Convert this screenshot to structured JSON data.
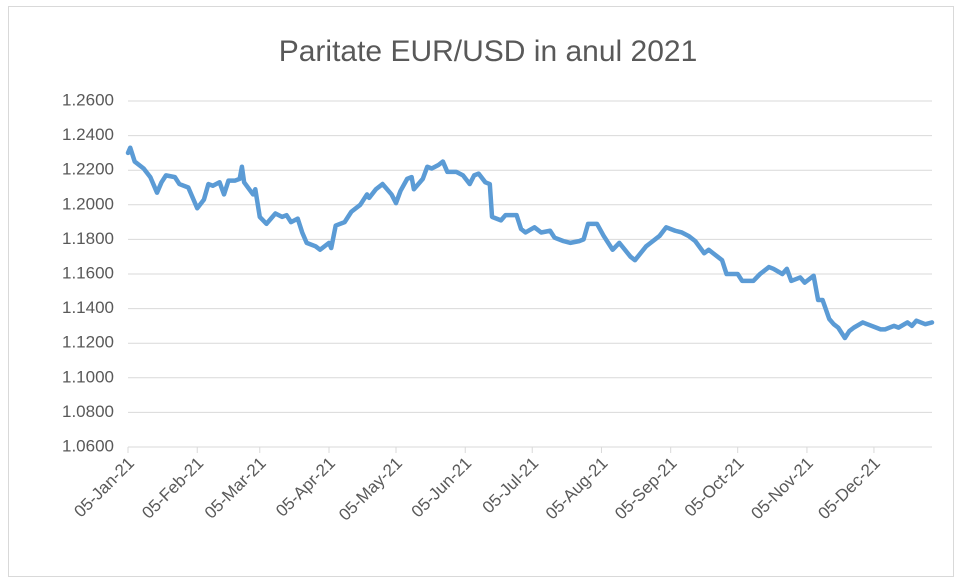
{
  "chart_data": {
    "type": "line",
    "title": "Paritate EUR/USD in anul 2021",
    "color": "#5b9bd5",
    "grid": true,
    "x": [
      "2021-01-05",
      "2021-01-06",
      "2021-01-08",
      "2021-01-12",
      "2021-01-15",
      "2021-01-18",
      "2021-01-20",
      "2021-01-22",
      "2021-01-26",
      "2021-01-28",
      "2021-02-01",
      "2021-02-03",
      "2021-02-05",
      "2021-02-08",
      "2021-02-10",
      "2021-02-12",
      "2021-02-15",
      "2021-02-17",
      "2021-02-19",
      "2021-02-22",
      "2021-02-24",
      "2021-02-25",
      "2021-02-26",
      "2021-03-02",
      "2021-03-03",
      "2021-03-05",
      "2021-03-08",
      "2021-03-10",
      "2021-03-12",
      "2021-03-15",
      "2021-03-17",
      "2021-03-19",
      "2021-03-22",
      "2021-03-24",
      "2021-03-26",
      "2021-03-30",
      "2021-04-01",
      "2021-04-05",
      "2021-04-06",
      "2021-04-08",
      "2021-04-12",
      "2021-04-15",
      "2021-04-19",
      "2021-04-22",
      "2021-04-23",
      "2021-04-26",
      "2021-04-29",
      "2021-05-03",
      "2021-05-05",
      "2021-05-07",
      "2021-05-10",
      "2021-05-12",
      "2021-05-13",
      "2021-05-17",
      "2021-05-19",
      "2021-05-21",
      "2021-05-24",
      "2021-05-26",
      "2021-05-28",
      "2021-06-01",
      "2021-06-04",
      "2021-06-07",
      "2021-06-09",
      "2021-06-11",
      "2021-06-14",
      "2021-06-16",
      "2021-06-17",
      "2021-06-21",
      "2021-06-23",
      "2021-06-28",
      "2021-06-30",
      "2021-07-02",
      "2021-07-06",
      "2021-07-09",
      "2021-07-13",
      "2021-07-15",
      "2021-07-19",
      "2021-07-22",
      "2021-07-26",
      "2021-07-28",
      "2021-07-30",
      "2021-08-03",
      "2021-08-06",
      "2021-08-10",
      "2021-08-13",
      "2021-08-18",
      "2021-08-20",
      "2021-08-25",
      "2021-08-27",
      "2021-08-31",
      "2021-09-03",
      "2021-09-07",
      "2021-09-10",
      "2021-09-13",
      "2021-09-16",
      "2021-09-20",
      "2021-09-22",
      "2021-09-24",
      "2021-09-28",
      "2021-09-30",
      "2021-10-05",
      "2021-10-07",
      "2021-10-12",
      "2021-10-15",
      "2021-10-19",
      "2021-10-21",
      "2021-10-25",
      "2021-10-27",
      "2021-10-29",
      "2021-11-02",
      "2021-11-04",
      "2021-11-08",
      "2021-11-10",
      "2021-11-12",
      "2021-11-15",
      "2021-11-17",
      "2021-11-19",
      "2021-11-22",
      "2021-11-24",
      "2021-11-26",
      "2021-11-30",
      "2021-12-02",
      "2021-12-06",
      "2021-12-08",
      "2021-12-10",
      "2021-12-14",
      "2021-12-16",
      "2021-12-20",
      "2021-12-22",
      "2021-12-24",
      "2021-12-28",
      "2021-12-31"
    ],
    "values": [
      1.23,
      1.233,
      1.225,
      1.221,
      1.216,
      1.207,
      1.213,
      1.217,
      1.216,
      1.212,
      1.21,
      1.204,
      1.198,
      1.203,
      1.212,
      1.211,
      1.213,
      1.206,
      1.214,
      1.214,
      1.215,
      1.222,
      1.213,
      1.206,
      1.209,
      1.193,
      1.189,
      1.192,
      1.195,
      1.193,
      1.194,
      1.19,
      1.192,
      1.184,
      1.178,
      1.176,
      1.174,
      1.178,
      1.175,
      1.188,
      1.19,
      1.196,
      1.2,
      1.206,
      1.204,
      1.209,
      1.212,
      1.206,
      1.201,
      1.208,
      1.215,
      1.216,
      1.209,
      1.215,
      1.222,
      1.221,
      1.223,
      1.225,
      1.219,
      1.219,
      1.217,
      1.212,
      1.217,
      1.218,
      1.213,
      1.212,
      1.193,
      1.191,
      1.194,
      1.194,
      1.186,
      1.184,
      1.187,
      1.184,
      1.185,
      1.181,
      1.179,
      1.178,
      1.179,
      1.18,
      1.189,
      1.189,
      1.182,
      1.174,
      1.178,
      1.17,
      1.168,
      1.176,
      1.178,
      1.182,
      1.187,
      1.185,
      1.184,
      1.182,
      1.179,
      1.172,
      1.174,
      1.172,
      1.168,
      1.16,
      1.16,
      1.156,
      1.156,
      1.16,
      1.164,
      1.163,
      1.16,
      1.163,
      1.156,
      1.158,
      1.155,
      1.159,
      1.145,
      1.145,
      1.134,
      1.131,
      1.129,
      1.123,
      1.127,
      1.129,
      1.132,
      1.131,
      1.129,
      1.128,
      1.128,
      1.13,
      1.129,
      1.132,
      1.13,
      1.133,
      1.131,
      1.132
    ],
    "xlim": [
      "2021-01-05",
      "2021-12-31"
    ],
    "xticks": [
      {
        "value": "2021-01-05",
        "label": "05-Jan-21"
      },
      {
        "value": "2021-02-05",
        "label": "05-Feb-21"
      },
      {
        "value": "2021-03-05",
        "label": "05-Mar-21"
      },
      {
        "value": "2021-04-05",
        "label": "05-Apr-21"
      },
      {
        "value": "2021-05-05",
        "label": "05-May-21"
      },
      {
        "value": "2021-06-05",
        "label": "05-Jun-21"
      },
      {
        "value": "2021-07-05",
        "label": "05-Jul-21"
      },
      {
        "value": "2021-08-05",
        "label": "05-Aug-21"
      },
      {
        "value": "2021-09-05",
        "label": "05-Sep-21"
      },
      {
        "value": "2021-10-05",
        "label": "05-Oct-21"
      },
      {
        "value": "2021-11-05",
        "label": "05-Nov-21"
      },
      {
        "value": "2021-12-05",
        "label": "05-Dec-21"
      }
    ],
    "ylim": [
      1.06,
      1.26
    ],
    "yticks": [
      {
        "value": 1.06,
        "label": "1.0600"
      },
      {
        "value": 1.08,
        "label": "1.0800"
      },
      {
        "value": 1.1,
        "label": "1.1000"
      },
      {
        "value": 1.12,
        "label": "1.1200"
      },
      {
        "value": 1.14,
        "label": "1.1400"
      },
      {
        "value": 1.16,
        "label": "1.1600"
      },
      {
        "value": 1.18,
        "label": "1.1800"
      },
      {
        "value": 1.2,
        "label": "1.2000"
      },
      {
        "value": 1.22,
        "label": "1.2200"
      },
      {
        "value": 1.24,
        "label": "1.2400"
      },
      {
        "value": 1.26,
        "label": "1.2600"
      }
    ]
  }
}
